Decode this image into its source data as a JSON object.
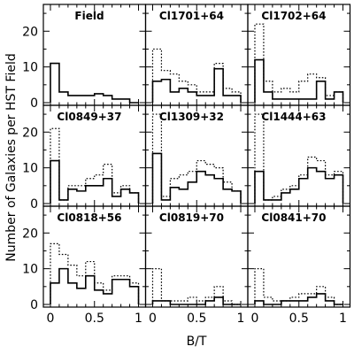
{
  "chart_data": {
    "type": "histogram",
    "xlabel": "B/T",
    "ylabel": "Number of Galaxies per HST Field",
    "xlim": [
      -0.05,
      1.05
    ],
    "ylim": [
      0,
      27
    ],
    "bin_edges": [
      0,
      0.1,
      0.2,
      0.3,
      0.4,
      0.5,
      0.6,
      0.7,
      0.8,
      0.9,
      1.0
    ],
    "xticks": [
      0,
      0.5,
      1
    ],
    "xtick_labels": [
      "0",
      "0.5",
      "1"
    ],
    "yticks": [
      0,
      10,
      20
    ],
    "ytick_labels": [
      "0",
      "10",
      "20"
    ],
    "grid": false,
    "layout": "3x3 panels",
    "series_styles": {
      "solid": "solid line",
      "dotted": "dotted line"
    },
    "panels": [
      {
        "label": "Field",
        "solid": [
          11,
          3,
          2,
          2,
          2,
          2.5,
          2,
          1,
          1,
          0
        ],
        "dotted": null
      },
      {
        "label": "Cl1701+64",
        "solid": [
          6,
          6.5,
          3,
          4,
          3,
          2,
          2,
          9.5,
          2,
          2
        ],
        "dotted": [
          15,
          9,
          8,
          6,
          5,
          3,
          3,
          11,
          4,
          3
        ]
      },
      {
        "label": "Cl1702+64",
        "solid": [
          12,
          3,
          1,
          1,
          1,
          1,
          1,
          6,
          1,
          3
        ],
        "dotted": [
          22,
          6,
          3,
          4,
          3,
          6,
          8,
          7,
          2,
          3
        ]
      },
      {
        "label": "Cl0849+37",
        "solid": [
          12,
          1,
          4,
          3.5,
          5,
          5,
          7,
          2,
          4,
          3
        ],
        "dotted": [
          21,
          1,
          5,
          5,
          7,
          8,
          11,
          3,
          5,
          3
        ]
      },
      {
        "label": "Cl1309+32",
        "solid": [
          14,
          1,
          4.5,
          4,
          6,
          9,
          8,
          7,
          4,
          3.5
        ],
        "dotted": [
          25,
          2,
          7,
          8,
          9,
          12,
          11,
          10,
          6,
          3.5
        ]
      },
      {
        "label": "Cl1444+63",
        "solid": [
          9,
          1,
          1,
          3,
          4,
          7,
          10,
          9,
          7,
          8
        ],
        "dotted": [
          25,
          1,
          2,
          4,
          5,
          8,
          13,
          12,
          8,
          9
        ]
      },
      {
        "label": "Cl0818+56",
        "solid": [
          6,
          10,
          6,
          4.5,
          8,
          4,
          3,
          7,
          7,
          5
        ],
        "dotted": [
          17,
          14,
          11,
          8,
          12,
          6,
          4,
          8,
          8,
          6
        ]
      },
      {
        "label": "Cl0819+70",
        "solid": [
          1,
          1,
          0,
          0,
          0,
          0,
          1,
          2,
          0,
          0
        ],
        "dotted": [
          10,
          1,
          1,
          1,
          2,
          1,
          2,
          5,
          1,
          0
        ]
      },
      {
        "label": "Cl0841+70",
        "solid": [
          1,
          0,
          0,
          1,
          1,
          1,
          2,
          3,
          1,
          0
        ],
        "dotted": [
          10,
          2,
          1,
          1,
          2,
          3,
          3,
          5,
          2,
          0
        ]
      }
    ]
  }
}
